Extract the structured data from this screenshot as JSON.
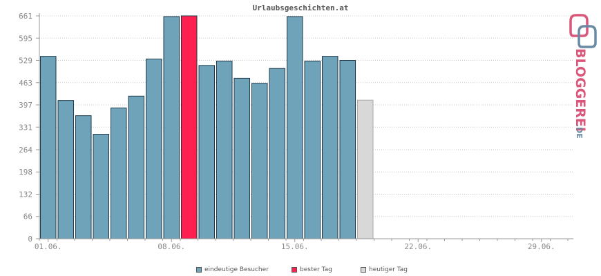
{
  "chart_data": {
    "type": "bar",
    "title": "Urlaubsgeschichten.at",
    "xlabel": "",
    "ylabel": "",
    "yticks": [
      0,
      66,
      132,
      198,
      264,
      331,
      397,
      463,
      529,
      595,
      661
    ],
    "ylim": [
      0,
      661
    ],
    "xticks": [
      {
        "label": "01.06.",
        "day": 1
      },
      {
        "label": "08.06.",
        "day": 8
      },
      {
        "label": "15.06.",
        "day": 15
      },
      {
        "label": "22.06.",
        "day": 22
      },
      {
        "label": "29.06.",
        "day": 29
      }
    ],
    "days_in_month": 30,
    "grid": true,
    "series": [
      {
        "name": "eindeutige Besucher",
        "color": "#6ea3ba"
      },
      {
        "name": "bester Tag",
        "color": "#ff2050"
      },
      {
        "name": "heutiger Tag",
        "color": "#d8d8d8"
      }
    ],
    "bars": [
      {
        "day": 1,
        "value": 541,
        "series": 0
      },
      {
        "day": 2,
        "value": 410,
        "series": 0
      },
      {
        "day": 3,
        "value": 365,
        "series": 0
      },
      {
        "day": 4,
        "value": 310,
        "series": 0
      },
      {
        "day": 5,
        "value": 388,
        "series": 0
      },
      {
        "day": 6,
        "value": 423,
        "series": 0
      },
      {
        "day": 7,
        "value": 533,
        "series": 0
      },
      {
        "day": 8,
        "value": 659,
        "series": 0
      },
      {
        "day": 9,
        "value": 661,
        "series": 1
      },
      {
        "day": 10,
        "value": 514,
        "series": 0
      },
      {
        "day": 11,
        "value": 527,
        "series": 0
      },
      {
        "day": 12,
        "value": 476,
        "series": 0
      },
      {
        "day": 13,
        "value": 461,
        "series": 0
      },
      {
        "day": 14,
        "value": 505,
        "series": 0
      },
      {
        "day": 15,
        "value": 659,
        "series": 0
      },
      {
        "day": 16,
        "value": 527,
        "series": 0
      },
      {
        "day": 17,
        "value": 541,
        "series": 0
      },
      {
        "day": 18,
        "value": 529,
        "series": 0
      },
      {
        "day": 19,
        "value": 411,
        "series": 2
      }
    ],
    "legend_placement": "bottom"
  },
  "logo": {
    "text": "BLOGGEREI",
    "suffix": ".DE",
    "primary_color": "#d9577a",
    "secondary_color": "#6a8aa3"
  }
}
